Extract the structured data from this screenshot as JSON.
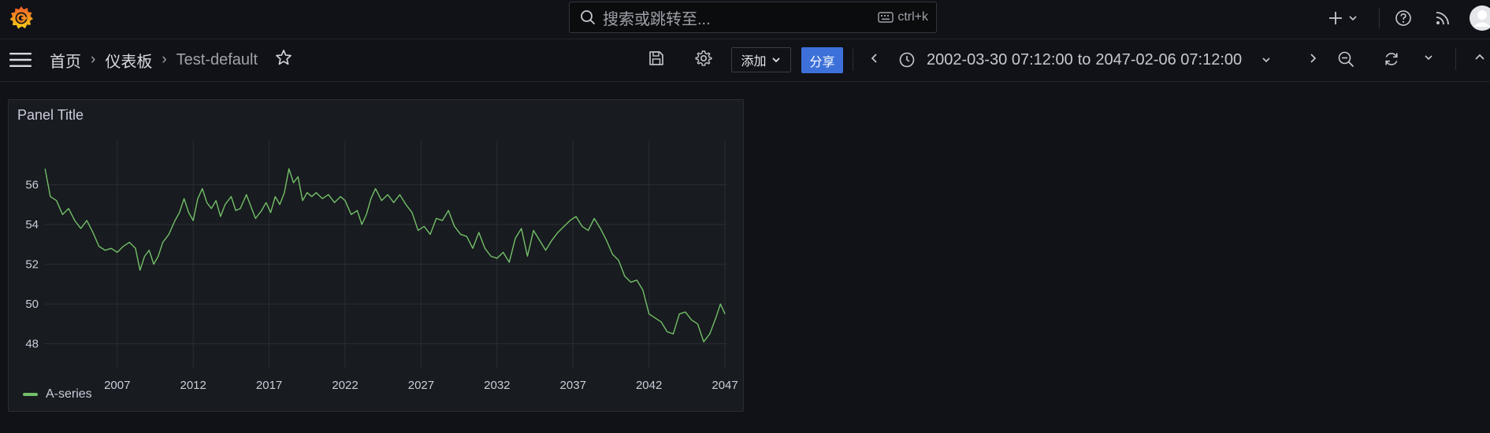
{
  "app": {
    "search_placeholder": "搜索或跳转至...",
    "search_shortcut": "ctrl+k"
  },
  "breadcrumb": {
    "home": "首页",
    "dashboards": "仪表板",
    "current": "Test-default"
  },
  "toolbar": {
    "add_label": "添加",
    "share_label": "分享",
    "time_from": "2002-03-30 07:12:00",
    "time_word": "to",
    "time_to": "2047-02-06 07:12:00"
  },
  "panel": {
    "title": "Panel Title"
  },
  "colors": {
    "series": "#73bf69",
    "accent": "#3d71d9",
    "background": "#111217",
    "panel": "#181b1f"
  },
  "icons": [
    "grafana-logo-icon",
    "search-icon",
    "keyboard-icon",
    "plus-icon",
    "chevron-down-icon",
    "help-icon",
    "rss-icon",
    "avatar",
    "menu-icon",
    "star-icon",
    "save-icon",
    "gear-icon",
    "chevron-left-icon",
    "clock-icon",
    "chevron-right-icon",
    "zoom-out-icon",
    "refresh-icon",
    "collapse-icon"
  ],
  "chart_data": {
    "type": "line",
    "title": "Panel Title",
    "xlabel": "",
    "ylabel": "",
    "x_ticks": [
      "2007",
      "2012",
      "2017",
      "2022",
      "2027",
      "2032",
      "2037",
      "2042",
      "2047"
    ],
    "y_ticks": [
      48,
      50,
      52,
      54,
      56
    ],
    "ylim": [
      46.8,
      58.2
    ],
    "xlim": [
      2002.24,
      2047.1
    ],
    "grid": true,
    "legend": "bottom-left",
    "series": [
      {
        "name": "A-series",
        "color": "#73bf69",
        "points": [
          [
            2002.25,
            56.8
          ],
          [
            2002.6,
            55.4
          ],
          [
            2003.0,
            55.2
          ],
          [
            2003.4,
            54.5
          ],
          [
            2003.8,
            54.8
          ],
          [
            2004.2,
            54.2
          ],
          [
            2004.6,
            53.8
          ],
          [
            2005.0,
            54.2
          ],
          [
            2005.4,
            53.6
          ],
          [
            2005.8,
            52.9
          ],
          [
            2006.2,
            52.7
          ],
          [
            2006.6,
            52.8
          ],
          [
            2007.0,
            52.6
          ],
          [
            2007.4,
            52.9
          ],
          [
            2007.8,
            53.1
          ],
          [
            2008.2,
            52.8
          ],
          [
            2008.5,
            51.7
          ],
          [
            2008.8,
            52.4
          ],
          [
            2009.1,
            52.7
          ],
          [
            2009.4,
            52.0
          ],
          [
            2009.7,
            52.4
          ],
          [
            2010.0,
            53.1
          ],
          [
            2010.4,
            53.5
          ],
          [
            2010.8,
            54.2
          ],
          [
            2011.1,
            54.6
          ],
          [
            2011.4,
            55.3
          ],
          [
            2011.7,
            54.6
          ],
          [
            2012.0,
            54.2
          ],
          [
            2012.3,
            55.3
          ],
          [
            2012.6,
            55.8
          ],
          [
            2012.9,
            55.1
          ],
          [
            2013.2,
            54.8
          ],
          [
            2013.5,
            55.2
          ],
          [
            2013.8,
            54.4
          ],
          [
            2014.1,
            55.0
          ],
          [
            2014.5,
            55.4
          ],
          [
            2014.8,
            54.7
          ],
          [
            2015.1,
            54.8
          ],
          [
            2015.5,
            55.5
          ],
          [
            2015.8,
            54.9
          ],
          [
            2016.1,
            54.3
          ],
          [
            2016.5,
            54.7
          ],
          [
            2016.8,
            55.1
          ],
          [
            2017.1,
            54.6
          ],
          [
            2017.4,
            55.4
          ],
          [
            2017.7,
            55.0
          ],
          [
            2018.0,
            55.6
          ],
          [
            2018.3,
            56.8
          ],
          [
            2018.6,
            56.1
          ],
          [
            2018.9,
            56.4
          ],
          [
            2019.2,
            55.2
          ],
          [
            2019.5,
            55.6
          ],
          [
            2019.8,
            55.4
          ],
          [
            2020.1,
            55.6
          ],
          [
            2020.5,
            55.3
          ],
          [
            2020.9,
            55.5
          ],
          [
            2021.3,
            55.1
          ],
          [
            2021.7,
            55.4
          ],
          [
            2022.0,
            55.2
          ],
          [
            2022.4,
            54.5
          ],
          [
            2022.8,
            54.7
          ],
          [
            2023.1,
            54.0
          ],
          [
            2023.4,
            54.5
          ],
          [
            2023.7,
            55.3
          ],
          [
            2024.0,
            55.8
          ],
          [
            2024.4,
            55.2
          ],
          [
            2024.8,
            55.5
          ],
          [
            2025.2,
            55.1
          ],
          [
            2025.6,
            55.5
          ],
          [
            2026.0,
            55.0
          ],
          [
            2026.4,
            54.6
          ],
          [
            2026.8,
            53.7
          ],
          [
            2027.2,
            53.9
          ],
          [
            2027.6,
            53.5
          ],
          [
            2028.0,
            54.3
          ],
          [
            2028.4,
            54.2
          ],
          [
            2028.8,
            54.7
          ],
          [
            2029.2,
            53.9
          ],
          [
            2029.6,
            53.5
          ],
          [
            2030.0,
            53.4
          ],
          [
            2030.4,
            52.8
          ],
          [
            2030.8,
            53.6
          ],
          [
            2031.2,
            52.8
          ],
          [
            2031.6,
            52.4
          ],
          [
            2032.0,
            52.3
          ],
          [
            2032.4,
            52.6
          ],
          [
            2032.8,
            52.1
          ],
          [
            2033.2,
            53.3
          ],
          [
            2033.6,
            53.8
          ],
          [
            2034.0,
            52.4
          ],
          [
            2034.4,
            53.7
          ],
          [
            2034.8,
            53.2
          ],
          [
            2035.2,
            52.7
          ],
          [
            2035.6,
            53.2
          ],
          [
            2036.0,
            53.6
          ],
          [
            2036.4,
            53.9
          ],
          [
            2036.8,
            54.2
          ],
          [
            2037.2,
            54.4
          ],
          [
            2037.6,
            53.9
          ],
          [
            2038.0,
            53.7
          ],
          [
            2038.4,
            54.3
          ],
          [
            2038.8,
            53.8
          ],
          [
            2039.2,
            53.2
          ],
          [
            2039.6,
            52.5
          ],
          [
            2040.0,
            52.2
          ],
          [
            2040.4,
            51.4
          ],
          [
            2040.8,
            51.1
          ],
          [
            2041.2,
            51.2
          ],
          [
            2041.6,
            50.7
          ],
          [
            2042.0,
            49.5
          ],
          [
            2042.4,
            49.3
          ],
          [
            2042.8,
            49.1
          ],
          [
            2043.2,
            48.6
          ],
          [
            2043.6,
            48.5
          ],
          [
            2044.0,
            49.5
          ],
          [
            2044.4,
            49.6
          ],
          [
            2044.8,
            49.2
          ],
          [
            2045.2,
            49.0
          ],
          [
            2045.6,
            48.1
          ],
          [
            2046.0,
            48.5
          ],
          [
            2046.4,
            49.3
          ],
          [
            2046.7,
            50.0
          ],
          [
            2047.0,
            49.5
          ]
        ]
      }
    ]
  }
}
